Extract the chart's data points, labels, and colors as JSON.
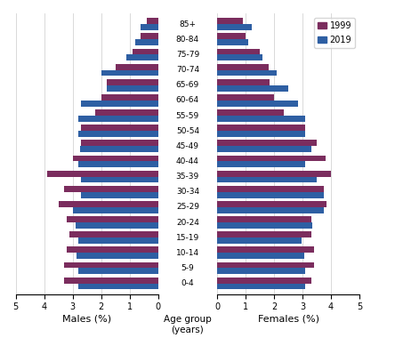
{
  "age_groups": [
    "0-4",
    "5-9",
    "10-14",
    "15-19",
    "20-24",
    "25-29",
    "30-34",
    "35-39",
    "40-44",
    "45-49",
    "50-54",
    "55-59",
    "60-64",
    "65-69",
    "70-74",
    "75-79",
    "80-84",
    "85+"
  ],
  "males_1999": [
    3.3,
    3.3,
    3.2,
    3.1,
    3.2,
    3.5,
    3.3,
    3.9,
    3.0,
    2.7,
    2.7,
    2.2,
    2.0,
    1.8,
    1.5,
    0.9,
    0.6,
    0.4
  ],
  "males_2019": [
    2.8,
    2.8,
    2.85,
    2.8,
    2.9,
    3.0,
    2.7,
    2.7,
    2.8,
    2.75,
    2.8,
    2.8,
    2.7,
    1.8,
    2.0,
    1.1,
    0.8,
    0.6
  ],
  "females_1999": [
    3.3,
    3.4,
    3.4,
    3.3,
    3.3,
    3.85,
    3.75,
    4.0,
    3.8,
    3.5,
    3.1,
    2.35,
    2.0,
    1.85,
    1.8,
    1.5,
    1.0,
    0.9
  ],
  "females_2019": [
    3.1,
    3.1,
    3.05,
    2.95,
    3.35,
    3.75,
    3.75,
    3.5,
    3.1,
    3.3,
    3.1,
    3.1,
    2.85,
    2.5,
    2.1,
    1.6,
    1.1,
    1.2
  ],
  "color_1999": "#7B2D5E",
  "color_2019": "#2E5FA3",
  "xlim": 5,
  "xlabel_left": "Males (%)",
  "xlabel_right": "Females (%)",
  "xlabel_center": "Age group\n(years)"
}
